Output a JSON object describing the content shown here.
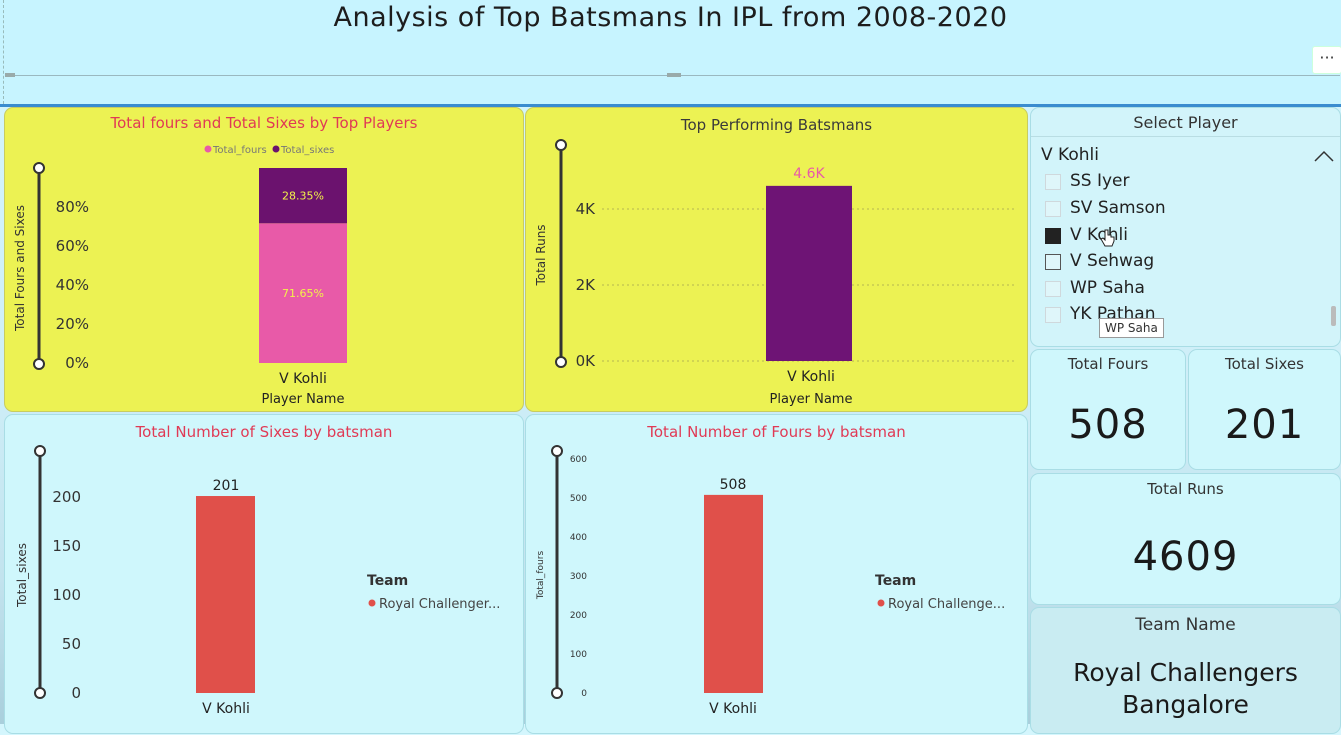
{
  "header": {
    "title": "Analysis of Top Batsmans In IPL from 2008-2020",
    "more_label": "···"
  },
  "fours_sixes_chart": {
    "title": "Total fours and Total Sixes by Top Players",
    "legend": [
      {
        "name": "Total_fours",
        "color": "#e85aa8"
      },
      {
        "name": "Total_sixes",
        "color": "#6b126e"
      }
    ],
    "ylabel": "Total Fours and Sixes",
    "yticks": [
      "0%",
      "20%",
      "40%",
      "60%",
      "80%"
    ],
    "category": "V Kohli",
    "xlabel": "Player Name",
    "fours_label": "71.65%",
    "sixes_label": "28.35%"
  },
  "runs_chart": {
    "title": "Top Performing Batsmans",
    "ylabel": "Total Runs",
    "yticks": [
      "0K",
      "2K",
      "4K"
    ],
    "value_label": "4.6K",
    "category": "V Kohli",
    "xlabel": "Player Name",
    "color": "#6e1475"
  },
  "sixes_chart": {
    "title": "Total Number of Sixes by batsman",
    "ylabel": "Total_sixes",
    "yticks": [
      "0",
      "50",
      "100",
      "150",
      "200"
    ],
    "value_label": "201",
    "category": "V Kohli",
    "legend_title": "Team",
    "legend_item": "Royal Challenger...",
    "color": "#e0504a"
  },
  "fours_chart": {
    "title": "Total Number of Fours by batsman",
    "ylabel": "Total_fours",
    "yticks": [
      "0",
      "100",
      "200",
      "300",
      "400",
      "500",
      "600"
    ],
    "value_label": "508",
    "category": "V Kohli",
    "legend_title": "Team",
    "legend_item": "Royal Challenge...",
    "color": "#e0504a"
  },
  "slicer": {
    "title": "Select Player",
    "selected": "V Kohli",
    "items": [
      {
        "label": "SS Iyer",
        "checked": false
      },
      {
        "label": "SV Samson",
        "checked": false
      },
      {
        "label": "V Kohli",
        "checked": true
      },
      {
        "label": "V Sehwag",
        "checked": false
      },
      {
        "label": "WP Saha",
        "checked": false
      },
      {
        "label": "YK Pathan",
        "checked": false
      }
    ],
    "tooltip": "WP Saha"
  },
  "cards": {
    "fours_label": "Total Fours",
    "fours_value": "508",
    "sixes_label": "Total Sixes",
    "sixes_value": "201",
    "runs_label": "Total Runs",
    "runs_value": "4609",
    "team_label": "Team Name",
    "team_value_line1": "Royal Challengers",
    "team_value_line2": "Bangalore"
  },
  "chart_data": [
    {
      "type": "bar",
      "title": "Total fours and Total Sixes by Top Players",
      "categories": [
        "V Kohli"
      ],
      "series": [
        {
          "name": "Total_fours",
          "values": [
            71.65
          ]
        },
        {
          "name": "Total_sixes",
          "values": [
            28.35
          ]
        }
      ],
      "stacked": "100%",
      "xlabel": "Player Name",
      "ylabel": "Total Fours and Sixes",
      "ylim": [
        0,
        100
      ]
    },
    {
      "type": "bar",
      "title": "Top Performing Batsmans",
      "categories": [
        "V Kohli"
      ],
      "values": [
        4609
      ],
      "xlabel": "Player Name",
      "ylabel": "Total Runs",
      "ylim": [
        0,
        4609
      ]
    },
    {
      "type": "bar",
      "title": "Total Number of Sixes by batsman",
      "categories": [
        "V Kohli"
      ],
      "values": [
        201
      ],
      "ylabel": "Total_sixes",
      "ylim": [
        0,
        201
      ]
    },
    {
      "type": "bar",
      "title": "Total Number of Fours by batsman",
      "categories": [
        "V Kohli"
      ],
      "values": [
        508
      ],
      "ylabel": "Total_fours",
      "ylim": [
        0,
        640
      ]
    }
  ]
}
